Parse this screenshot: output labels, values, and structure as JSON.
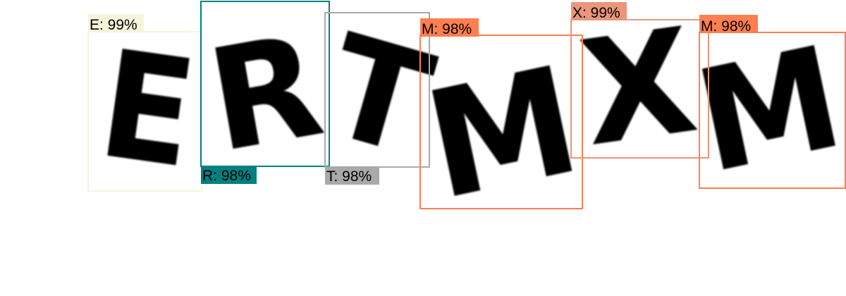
{
  "detections": [
    {
      "char": "E",
      "label": "E: 99%",
      "color": "#f5f5dc"
    },
    {
      "char": "R",
      "label": "R: 98%",
      "color": "#008080"
    },
    {
      "char": "T",
      "label": "T: 98%",
      "color": "#a9a9a9"
    },
    {
      "char": "M",
      "label": "M: 98%",
      "color": "#ff7f50"
    },
    {
      "char": "X",
      "label": "X: 99%",
      "color": "#e9967a"
    },
    {
      "char": "M",
      "label": "M: 98%",
      "color": "#ff7f50"
    }
  ]
}
